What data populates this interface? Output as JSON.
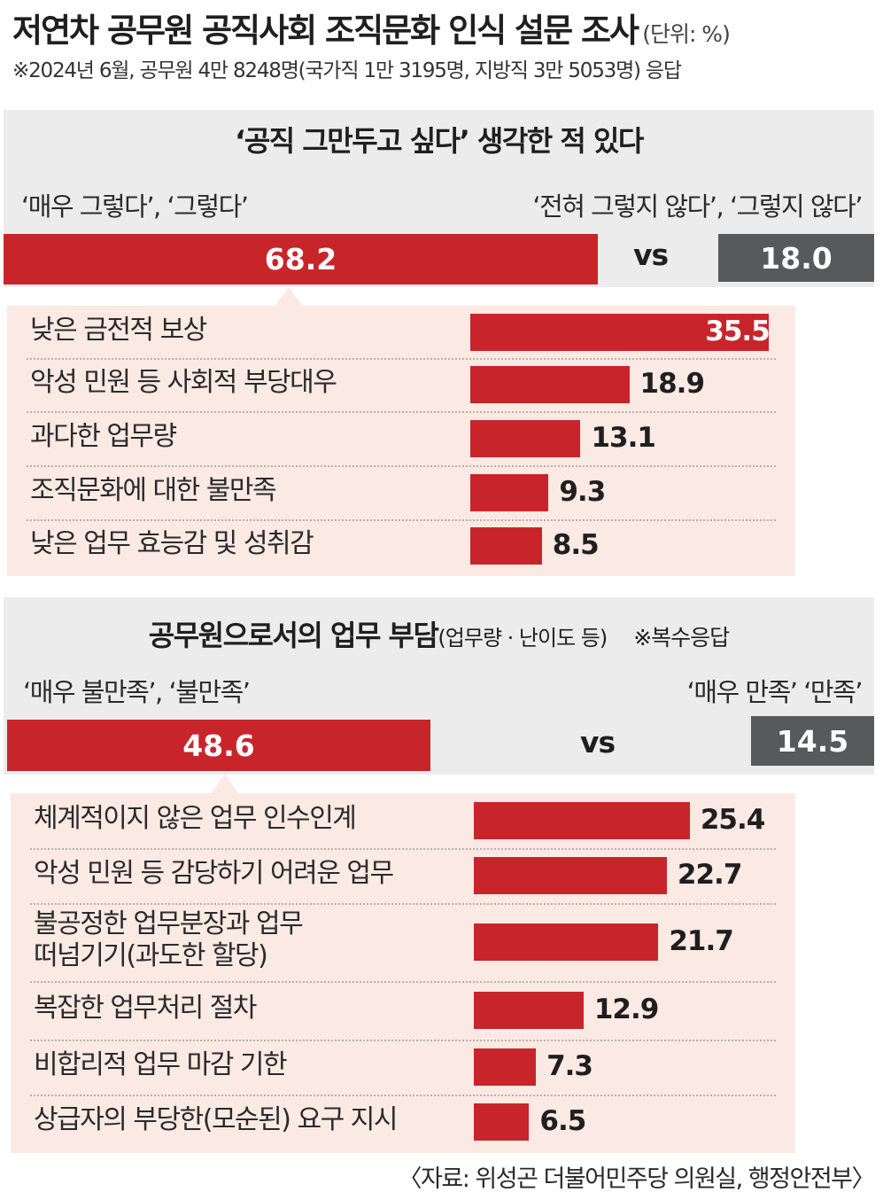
{
  "header": {
    "title": "저연차 공무원 공직사회 조직문화 인식 설문 조사",
    "unit": "(단위: %)",
    "subtitle": "※2024년 6월, 공무원 4만 8248명(국가직 1만 3195명, 지방직 3만 5053명) 응답"
  },
  "colors": {
    "accent_red": "#c8252b",
    "neutral_gray": "#58595b",
    "panel_gray": "#ececec",
    "detail_bg": "#fbe9e3"
  },
  "chart_data": [
    {
      "type": "bar",
      "title": "‘공직 그만두고 싶다’ 생각한 적 있다",
      "agree_label": "‘매우 그렇다’, ‘그렇다’",
      "disagree_label": "‘전혀 그렇지 않다’, ‘그렇지 않다’",
      "vs_label": "vs",
      "agree_value": 68.2,
      "agree_value_text": "68.2",
      "disagree_value": 18.0,
      "disagree_value_text": "18.0",
      "categories": [
        "낮은 금전적 보상",
        "악성 민원 등 사회적 부당대우",
        "과다한 업무량",
        "조직문화에 대한 불만족",
        "낮은 업무 효능감 및 성취감"
      ],
      "values": [
        35.5,
        18.9,
        13.1,
        9.3,
        8.5
      ],
      "value_labels": [
        "35.5",
        "18.9",
        "13.1",
        "9.3",
        "8.5"
      ]
    },
    {
      "type": "bar",
      "title": "공무원으로서의 업무 부담",
      "title_suffix": "(업무량 · 난이도 등)",
      "note": "※복수응답",
      "agree_label": "‘매우 불만족’, ‘불만족’",
      "disagree_label": "‘매우 만족’ ‘만족’",
      "vs_label": "vs",
      "agree_value": 48.6,
      "agree_value_text": "48.6",
      "disagree_value": 14.5,
      "disagree_value_text": "14.5",
      "categories": [
        "체계적이지 않은 업무 인수인계",
        "악성 민원 등 감당하기 어려운 업무",
        "불공정한 업무분장과 업무 떠넘기기(과도한 할당)",
        "복잡한 업무처리 절차",
        "비합리적 업무 마감 기한",
        "상급자의 부당한(모순된) 요구 지시"
      ],
      "category_lines": [
        [
          "체계적이지 않은 업무 인수인계"
        ],
        [
          "악성 민원 등 감당하기 어려운 업무"
        ],
        [
          "불공정한 업무분장과 업무",
          "떠넘기기(과도한 할당)"
        ],
        [
          "복잡한 업무처리 절차"
        ],
        [
          "비합리적 업무 마감 기한"
        ],
        [
          "상급자의 부당한(모순된) 요구 지시"
        ]
      ],
      "values": [
        25.4,
        22.7,
        21.7,
        12.9,
        7.3,
        6.5
      ],
      "value_labels": [
        "25.4",
        "22.7",
        "21.7",
        "12.9",
        "7.3",
        "6.5"
      ]
    }
  ],
  "source": "〈자료: 위성곤 더불어민주당 의원실, 행정안전부〉"
}
